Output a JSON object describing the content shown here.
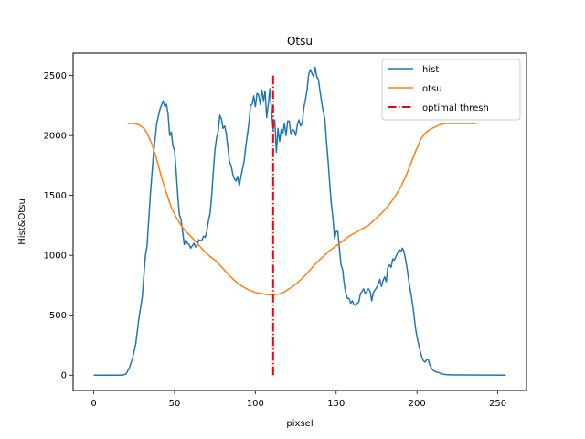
{
  "chart_data": {
    "type": "line",
    "title": "Otsu",
    "xlabel": "pixsel",
    "ylabel": "Hist&Otsu",
    "xlim": [
      -12.75,
      267.75
    ],
    "ylim": [
      -128,
      2688
    ],
    "xticks": [
      0,
      50,
      100,
      150,
      200,
      250
    ],
    "yticks": [
      0,
      500,
      1000,
      1500,
      2000,
      2500
    ],
    "grid": false,
    "legend_position": "top-right",
    "series": [
      {
        "name": "hist",
        "kind": "line",
        "color": "#1f77b4",
        "points": [
          [
            0,
            0
          ],
          [
            18,
            0
          ],
          [
            20,
            10
          ],
          [
            22,
            60
          ],
          [
            24,
            140
          ],
          [
            26,
            260
          ],
          [
            28,
            480
          ],
          [
            30,
            650
          ],
          [
            32,
            1000
          ],
          [
            33,
            1080
          ],
          [
            35,
            1500
          ],
          [
            37,
            1850
          ],
          [
            39,
            2100
          ],
          [
            41,
            2220
          ],
          [
            43,
            2290
          ],
          [
            44,
            2240
          ],
          [
            45,
            2260
          ],
          [
            46,
            2180
          ],
          [
            47,
            2000
          ],
          [
            48,
            2030
          ],
          [
            49,
            1910
          ],
          [
            50,
            1880
          ],
          [
            51,
            1700
          ],
          [
            52,
            1500
          ],
          [
            53,
            1340
          ],
          [
            54,
            1300
          ],
          [
            55,
            1200
          ],
          [
            56,
            1090
          ],
          [
            57,
            1130
          ],
          [
            58,
            1100
          ],
          [
            59,
            1090
          ],
          [
            60,
            1060
          ],
          [
            61,
            1080
          ],
          [
            62,
            1100
          ],
          [
            63,
            1070
          ],
          [
            64,
            1080
          ],
          [
            65,
            1130
          ],
          [
            66,
            1120
          ],
          [
            67,
            1130
          ],
          [
            68,
            1160
          ],
          [
            69,
            1150
          ],
          [
            70,
            1200
          ],
          [
            71,
            1290
          ],
          [
            72,
            1350
          ],
          [
            73,
            1500
          ],
          [
            74,
            1700
          ],
          [
            75,
            1880
          ],
          [
            76,
            1980
          ],
          [
            77,
            2030
          ],
          [
            78,
            2170
          ],
          [
            79,
            2140
          ],
          [
            80,
            2060
          ],
          [
            81,
            2080
          ],
          [
            82,
            2020
          ],
          [
            83,
            1900
          ],
          [
            84,
            1780
          ],
          [
            85,
            1750
          ],
          [
            86,
            1680
          ],
          [
            87,
            1640
          ],
          [
            88,
            1620
          ],
          [
            89,
            1660
          ],
          [
            90,
            1580
          ],
          [
            91,
            1650
          ],
          [
            92,
            1720
          ],
          [
            93,
            1780
          ],
          [
            94,
            1900
          ],
          [
            95,
            2000
          ],
          [
            96,
            2100
          ],
          [
            97,
            2250
          ],
          [
            98,
            2260
          ],
          [
            99,
            2330
          ],
          [
            100,
            2240
          ],
          [
            101,
            2350
          ],
          [
            102,
            2340
          ],
          [
            103,
            2260
          ],
          [
            104,
            2380
          ],
          [
            105,
            2290
          ],
          [
            106,
            2370
          ],
          [
            107,
            2150
          ],
          [
            108,
            2260
          ],
          [
            109,
            2390
          ],
          [
            110,
            2200
          ],
          [
            111,
            2050
          ],
          [
            112,
            2130
          ],
          [
            113,
            1860
          ],
          [
            114,
            2060
          ],
          [
            115,
            1950
          ],
          [
            116,
            2050
          ],
          [
            117,
            2020
          ],
          [
            118,
            2100
          ],
          [
            119,
            2000
          ],
          [
            120,
            2120
          ],
          [
            121,
            2120
          ],
          [
            122,
            2010
          ],
          [
            123,
            2050
          ],
          [
            124,
            2040
          ],
          [
            125,
            2000
          ],
          [
            126,
            2090
          ],
          [
            127,
            2130
          ],
          [
            128,
            2080
          ],
          [
            129,
            2100
          ],
          [
            130,
            2230
          ],
          [
            131,
            2300
          ],
          [
            132,
            2380
          ],
          [
            133,
            2510
          ],
          [
            134,
            2550
          ],
          [
            135,
            2520
          ],
          [
            136,
            2490
          ],
          [
            137,
            2570
          ],
          [
            138,
            2490
          ],
          [
            139,
            2470
          ],
          [
            140,
            2370
          ],
          [
            141,
            2280
          ],
          [
            142,
            2200
          ],
          [
            143,
            2140
          ],
          [
            144,
            1950
          ],
          [
            145,
            1790
          ],
          [
            146,
            1600
          ],
          [
            147,
            1430
          ],
          [
            148,
            1310
          ],
          [
            149,
            1140
          ],
          [
            150,
            1200
          ],
          [
            151,
            1200
          ],
          [
            152,
            1060
          ],
          [
            153,
            920
          ],
          [
            154,
            880
          ],
          [
            155,
            760
          ],
          [
            156,
            680
          ],
          [
            157,
            640
          ],
          [
            158,
            640
          ],
          [
            159,
            600
          ],
          [
            160,
            620
          ],
          [
            161,
            590
          ],
          [
            162,
            580
          ],
          [
            163,
            600
          ],
          [
            164,
            610
          ],
          [
            165,
            680
          ],
          [
            166,
            700
          ],
          [
            167,
            720
          ],
          [
            168,
            680
          ],
          [
            169,
            700
          ],
          [
            170,
            720
          ],
          [
            171,
            700
          ],
          [
            172,
            620
          ],
          [
            173,
            690
          ],
          [
            174,
            710
          ],
          [
            175,
            730
          ],
          [
            176,
            760
          ],
          [
            177,
            800
          ],
          [
            178,
            740
          ],
          [
            179,
            790
          ],
          [
            180,
            820
          ],
          [
            181,
            780
          ],
          [
            182,
            900
          ],
          [
            183,
            920
          ],
          [
            184,
            900
          ],
          [
            185,
            970
          ],
          [
            186,
            960
          ],
          [
            187,
            990
          ],
          [
            188,
            1020
          ],
          [
            189,
            1050
          ],
          [
            190,
            1030
          ],
          [
            191,
            1060
          ],
          [
            192,
            1030
          ],
          [
            193,
            960
          ],
          [
            194,
            880
          ],
          [
            195,
            780
          ],
          [
            196,
            700
          ],
          [
            197,
            620
          ],
          [
            198,
            520
          ],
          [
            199,
            400
          ],
          [
            200,
            320
          ],
          [
            201,
            260
          ],
          [
            202,
            200
          ],
          [
            203,
            150
          ],
          [
            204,
            120
          ],
          [
            205,
            110
          ],
          [
            206,
            130
          ],
          [
            207,
            130
          ],
          [
            208,
            80
          ],
          [
            209,
            60
          ],
          [
            210,
            40
          ],
          [
            212,
            25
          ],
          [
            214,
            20
          ],
          [
            215,
            10
          ],
          [
            218,
            5
          ],
          [
            222,
            2
          ],
          [
            255,
            0
          ]
        ]
      },
      {
        "name": "otsu",
        "kind": "line",
        "color": "#ff7f0e",
        "points": [
          [
            21,
            2100
          ],
          [
            25,
            2100
          ],
          [
            28,
            2090
          ],
          [
            31,
            2060
          ],
          [
            33,
            2020
          ],
          [
            36,
            1930
          ],
          [
            39,
            1800
          ],
          [
            42,
            1650
          ],
          [
            45,
            1520
          ],
          [
            48,
            1400
          ],
          [
            51,
            1320
          ],
          [
            54,
            1250
          ],
          [
            57,
            1200
          ],
          [
            60,
            1160
          ],
          [
            64,
            1100
          ],
          [
            68,
            1040
          ],
          [
            72,
            990
          ],
          [
            76,
            950
          ],
          [
            80,
            890
          ],
          [
            84,
            830
          ],
          [
            88,
            780
          ],
          [
            92,
            740
          ],
          [
            96,
            710
          ],
          [
            100,
            690
          ],
          [
            104,
            680
          ],
          [
            108,
            670
          ],
          [
            111,
            670
          ],
          [
            114,
            675
          ],
          [
            118,
            695
          ],
          [
            122,
            730
          ],
          [
            126,
            770
          ],
          [
            130,
            820
          ],
          [
            134,
            880
          ],
          [
            138,
            940
          ],
          [
            142,
            990
          ],
          [
            146,
            1040
          ],
          [
            150,
            1080
          ],
          [
            154,
            1120
          ],
          [
            158,
            1160
          ],
          [
            162,
            1190
          ],
          [
            166,
            1220
          ],
          [
            170,
            1250
          ],
          [
            174,
            1300
          ],
          [
            178,
            1350
          ],
          [
            182,
            1410
          ],
          [
            186,
            1480
          ],
          [
            190,
            1570
          ],
          [
            194,
            1690
          ],
          [
            198,
            1830
          ],
          [
            202,
            1960
          ],
          [
            205,
            2020
          ],
          [
            208,
            2050
          ],
          [
            211,
            2070
          ],
          [
            214,
            2090
          ],
          [
            217,
            2100
          ],
          [
            222,
            2100
          ],
          [
            226,
            2100
          ],
          [
            237,
            2100
          ]
        ]
      },
      {
        "name": "optimal thresh",
        "kind": "vline",
        "color": "#ff0000",
        "dash": "dashdot",
        "x": 111,
        "y_range": [
          0,
          2500
        ]
      }
    ]
  }
}
